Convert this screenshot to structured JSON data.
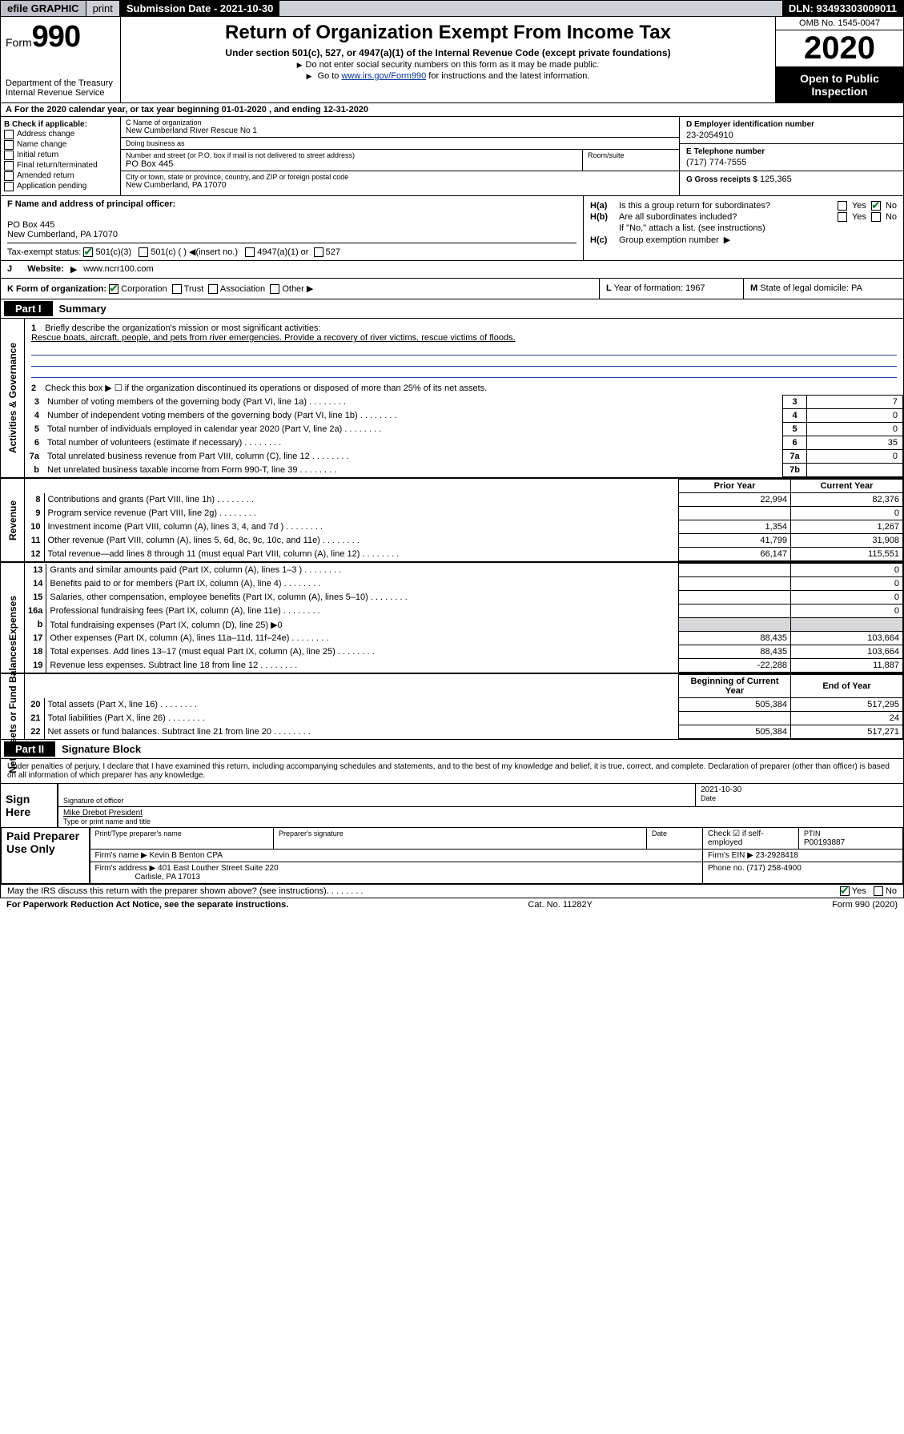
{
  "topbar": {
    "efile": "efile GRAPHIC",
    "print": "print",
    "submission": "Submission Date - 2021-10-30",
    "dln": "DLN: 93493303009011"
  },
  "header": {
    "form_label": "Form",
    "form_num": "990",
    "dept": "Department of the Treasury\nInternal Revenue Service",
    "title": "Return of Organization Exempt From Income Tax",
    "sub": "Under section 501(c), 527, or 4947(a)(1) of the Internal Revenue Code (except private foundations)",
    "note1": "Do not enter social security numbers on this form as it may be made public.",
    "note2_pre": "Go to ",
    "note2_link": "www.irs.gov/Form990",
    "note2_post": " for instructions and the latest information.",
    "omb": "OMB No. 1545-0047",
    "year": "2020",
    "open": "Open to Public Inspection"
  },
  "rowA": "For the 2020 calendar year, or tax year beginning 01-01-2020   , and ending 12-31-2020",
  "colB": {
    "label": "B Check if applicable:",
    "items": [
      "Address change",
      "Name change",
      "Initial return",
      "Final return/terminated",
      "Amended return",
      "Application pending"
    ]
  },
  "colC": {
    "name_lbl": "C Name of organization",
    "name": "New Cumberland River Rescue No 1",
    "dba_lbl": "Doing business as",
    "dba": "",
    "addr_lbl": "Number and street (or P.O. box if mail is not delivered to street address)",
    "addr": "PO Box 445",
    "room_lbl": "Room/suite",
    "city_lbl": "City or town, state or province, country, and ZIP or foreign postal code",
    "city": "New Cumberland, PA  17070"
  },
  "colD": {
    "ein_lbl": "D Employer identification number",
    "ein": "23-2054910",
    "tel_lbl": "E Telephone number",
    "tel": "(717) 774-7555",
    "gross_lbl": "G Gross receipts $",
    "gross": "125,365"
  },
  "colF": {
    "lbl": "F  Name and address of principal officer:",
    "addr1": "PO Box 445",
    "addr2": "New Cumberland, PA  17070"
  },
  "colH": {
    "a_lbl": "H(a)",
    "a_txt": "Is this a group return for subordinates?",
    "b_lbl": "H(b)",
    "b_txt": "Are all subordinates included?",
    "b_note": "If \"No,\" attach a list. (see instructions)",
    "c_lbl": "H(c)",
    "c_txt": "Group exemption number"
  },
  "rowI": {
    "lbl": "Tax-exempt status:",
    "opt1": "501(c)(3)",
    "opt2": "501(c) (   )",
    "opt2b": "(insert no.)",
    "opt3": "4947(a)(1) or",
    "opt4": "527"
  },
  "rowJ": {
    "lbl": "Website:",
    "val": "www.ncrr100.com"
  },
  "rowK": {
    "lbl": "K Form of organization:",
    "opts": [
      "Corporation",
      "Trust",
      "Association",
      "Other"
    ]
  },
  "rowL": {
    "lbl": "L",
    "txt": "Year of formation:",
    "val": "1967"
  },
  "rowM": {
    "lbl": "M",
    "txt": "State of legal domicile:",
    "val": "PA"
  },
  "part1": {
    "tag": "Part I",
    "title": "Summary",
    "sections": {
      "gov_label": "Activities & Governance",
      "rev_label": "Revenue",
      "exp_label": "Expenses",
      "net_label": "Net Assets or Fund Balances"
    },
    "q1_lbl": "1",
    "q1_txt": "Briefly describe the organization's mission or most significant activities:",
    "q1_val": "Rescue boats, aircraft, people, and pets from river emergencies. Provide a recovery of river victims, rescue victims of floods.",
    "q2": "Check this box ▶ ☐  if the organization discontinued its operations or disposed of more than 25% of its net assets.",
    "lines_gov": [
      {
        "n": "3",
        "t": "Number of voting members of the governing body (Part VI, line 1a)",
        "box": "3",
        "v": "7"
      },
      {
        "n": "4",
        "t": "Number of independent voting members of the governing body (Part VI, line 1b)",
        "box": "4",
        "v": "0"
      },
      {
        "n": "5",
        "t": "Total number of individuals employed in calendar year 2020 (Part V, line 2a)",
        "box": "5",
        "v": "0"
      },
      {
        "n": "6",
        "t": "Total number of volunteers (estimate if necessary)",
        "box": "6",
        "v": "35"
      },
      {
        "n": "7a",
        "t": "Total unrelated business revenue from Part VIII, column (C), line 12",
        "box": "7a",
        "v": "0"
      },
      {
        "n": "b",
        "t": "Net unrelated business taxable income from Form 990-T, line 39",
        "box": "7b",
        "v": ""
      }
    ],
    "col_hdr_prior": "Prior Year",
    "col_hdr_current": "Current Year",
    "lines_rev": [
      {
        "n": "8",
        "t": "Contributions and grants (Part VIII, line 1h)",
        "p": "22,994",
        "c": "82,376"
      },
      {
        "n": "9",
        "t": "Program service revenue (Part VIII, line 2g)",
        "p": "",
        "c": "0"
      },
      {
        "n": "10",
        "t": "Investment income (Part VIII, column (A), lines 3, 4, and 7d )",
        "p": "1,354",
        "c": "1,267"
      },
      {
        "n": "11",
        "t": "Other revenue (Part VIII, column (A), lines 5, 6d, 8c, 9c, 10c, and 11e)",
        "p": "41,799",
        "c": "31,908"
      },
      {
        "n": "12",
        "t": "Total revenue—add lines 8 through 11 (must equal Part VIII, column (A), line 12)",
        "p": "66,147",
        "c": "115,551"
      }
    ],
    "lines_exp": [
      {
        "n": "13",
        "t": "Grants and similar amounts paid (Part IX, column (A), lines 1–3 )",
        "p": "",
        "c": "0"
      },
      {
        "n": "14",
        "t": "Benefits paid to or for members (Part IX, column (A), line 4)",
        "p": "",
        "c": "0"
      },
      {
        "n": "15",
        "t": "Salaries, other compensation, employee benefits (Part IX, column (A), lines 5–10)",
        "p": "",
        "c": "0"
      },
      {
        "n": "16a",
        "t": "Professional fundraising fees (Part IX, column (A), line 11e)",
        "p": "",
        "c": "0"
      },
      {
        "n": "b",
        "t": "Total fundraising expenses (Part IX, column (D), line 25) ▶0",
        "shade": true
      },
      {
        "n": "17",
        "t": "Other expenses (Part IX, column (A), lines 11a–11d, 11f–24e)",
        "p": "88,435",
        "c": "103,664"
      },
      {
        "n": "18",
        "t": "Total expenses. Add lines 13–17 (must equal Part IX, column (A), line 25)",
        "p": "88,435",
        "c": "103,664"
      },
      {
        "n": "19",
        "t": "Revenue less expenses. Subtract line 18 from line 12",
        "p": "-22,288",
        "c": "11,887"
      }
    ],
    "col_hdr_beg": "Beginning of Current Year",
    "col_hdr_end": "End of Year",
    "lines_net": [
      {
        "n": "20",
        "t": "Total assets (Part X, line 16)",
        "p": "505,384",
        "c": "517,295"
      },
      {
        "n": "21",
        "t": "Total liabilities (Part X, line 26)",
        "p": "",
        "c": "24"
      },
      {
        "n": "22",
        "t": "Net assets or fund balances. Subtract line 21 from line 20",
        "p": "505,384",
        "c": "517,271"
      }
    ]
  },
  "part2": {
    "tag": "Part II",
    "title": "Signature Block",
    "perjury": "Under penalties of perjury, I declare that I have examined this return, including accompanying schedules and statements, and to the best of my knowledge and belief, it is true, correct, and complete. Declaration of preparer (other than officer) is based on all information of which preparer has any knowledge.",
    "sign_here": "Sign Here",
    "sig_lbl": "Signature of officer",
    "sig_date": "2021-10-30",
    "date_lbl": "Date",
    "name_lbl": "Type or print name and title",
    "name_val": "Mike Drebot President",
    "paid": "Paid Preparer Use Only",
    "prep_name_lbl": "Print/Type preparer's name",
    "prep_sig_lbl": "Preparer's signature",
    "prep_date_lbl": "Date",
    "prep_check_lbl": "Check ☑ if self-employed",
    "ptin_lbl": "PTIN",
    "ptin": "P00193887",
    "firm_name_lbl": "Firm's name   ▶",
    "firm_name": "Kevin B Benton CPA",
    "firm_ein_lbl": "Firm's EIN ▶",
    "firm_ein": "23-2928418",
    "firm_addr_lbl": "Firm's address ▶",
    "firm_addr1": "401 East Louther Street Suite 220",
    "firm_addr2": "Carlisle, PA  17013",
    "phone_lbl": "Phone no.",
    "phone": "(717) 258-4900",
    "discuss": "May the IRS discuss this return with the preparer shown above? (see instructions)",
    "yes": "Yes",
    "no": "No"
  },
  "footer": {
    "l": "For Paperwork Reduction Act Notice, see the separate instructions.",
    "c": "Cat. No. 11282Y",
    "r": "Form 990 (2020)"
  },
  "dots": "   .    .    .    .    .    .    .    ."
}
